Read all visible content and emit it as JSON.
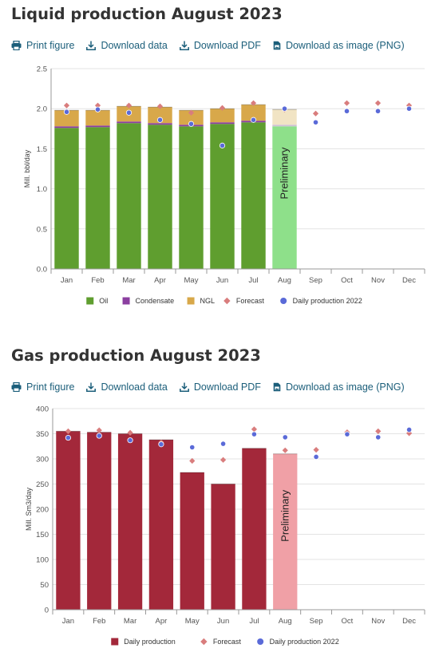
{
  "toolbar": {
    "print": "Print figure",
    "download_data": "Download data",
    "download_pdf": "Download PDF",
    "download_png": "Download as image (PNG)",
    "icon_color": "#1b5e7a"
  },
  "liquid": {
    "title": "Liquid production August 2023",
    "chart_data": {
      "type": "bar",
      "stacked": true,
      "categories": [
        "Jan",
        "Feb",
        "Mar",
        "Apr",
        "May",
        "Jun",
        "Jul",
        "Aug",
        "Sep",
        "Oct",
        "Nov",
        "Dec"
      ],
      "ylabel": "Mill. bbl/day",
      "ylim": [
        0,
        2.5
      ],
      "yticks": [
        "0.0",
        "0.5",
        "1.0",
        "1.5",
        "2.0",
        "2.5"
      ],
      "grid": true,
      "legend_position": "bottom",
      "annotation": "Preliminary",
      "annotation_category": "Aug",
      "series": [
        {
          "name": "Oil",
          "kind": "bar",
          "color": "#5f9e2f",
          "preliminary_color": "#8ee08a",
          "values": [
            1.76,
            1.77,
            1.82,
            1.8,
            1.78,
            1.81,
            1.83,
            1.78,
            null,
            null,
            null,
            null
          ]
        },
        {
          "name": "Condensate",
          "kind": "bar",
          "color": "#8b3fa0",
          "preliminary_color": "#cfc0d4",
          "values": [
            0.02,
            0.02,
            0.02,
            0.02,
            0.02,
            0.02,
            0.02,
            0.02,
            null,
            null,
            null,
            null
          ]
        },
        {
          "name": "NGL",
          "kind": "bar",
          "color": "#d8a84a",
          "preliminary_color": "#f1e4c4",
          "values": [
            0.2,
            0.19,
            0.19,
            0.2,
            0.18,
            0.17,
            0.2,
            0.19,
            null,
            null,
            null,
            null
          ]
        },
        {
          "name": "Forecast",
          "kind": "diamond",
          "color": "#d97d7d",
          "values": [
            2.04,
            2.04,
            2.04,
            2.03,
            1.95,
            2.01,
            2.07,
            1.99,
            1.94,
            2.07,
            2.07,
            2.04
          ]
        },
        {
          "name": "Daily production 2022",
          "kind": "dot",
          "color": "#5a6ad8",
          "values": [
            1.96,
            1.99,
            1.95,
            1.86,
            1.81,
            1.54,
            1.86,
            2.0,
            1.83,
            1.97,
            1.97,
            2.0
          ]
        }
      ]
    }
  },
  "gas": {
    "title": "Gas production August 2023",
    "chart_data": {
      "type": "bar",
      "categories": [
        "Jan",
        "Feb",
        "Mar",
        "Apr",
        "May",
        "Jun",
        "Jul",
        "Aug",
        "Sep",
        "Oct",
        "Nov",
        "Dec"
      ],
      "ylabel": "Mill. Sm3/day",
      "ylim": [
        0,
        400
      ],
      "yticks": [
        "0",
        "50",
        "100",
        "150",
        "200",
        "250",
        "300",
        "350",
        "400"
      ],
      "grid": true,
      "legend_position": "bottom",
      "annotation": "Preliminary",
      "annotation_category": "Aug",
      "series": [
        {
          "name": "Daily production",
          "kind": "bar",
          "color": "#a3283a",
          "preliminary_color": "#f0a0a6",
          "values": [
            355,
            353,
            350,
            338,
            273,
            250,
            321,
            310,
            null,
            null,
            null,
            null
          ]
        },
        {
          "name": "Forecast",
          "kind": "diamond",
          "color": "#d97d7d",
          "values": [
            355,
            357,
            352,
            333,
            296,
            298,
            359,
            317,
            318,
            353,
            355,
            351
          ]
        },
        {
          "name": "Daily production 2022",
          "kind": "dot",
          "color": "#5a6ad8",
          "values": [
            342,
            346,
            337,
            329,
            323,
            330,
            349,
            343,
            304,
            349,
            343,
            358
          ]
        }
      ]
    }
  }
}
